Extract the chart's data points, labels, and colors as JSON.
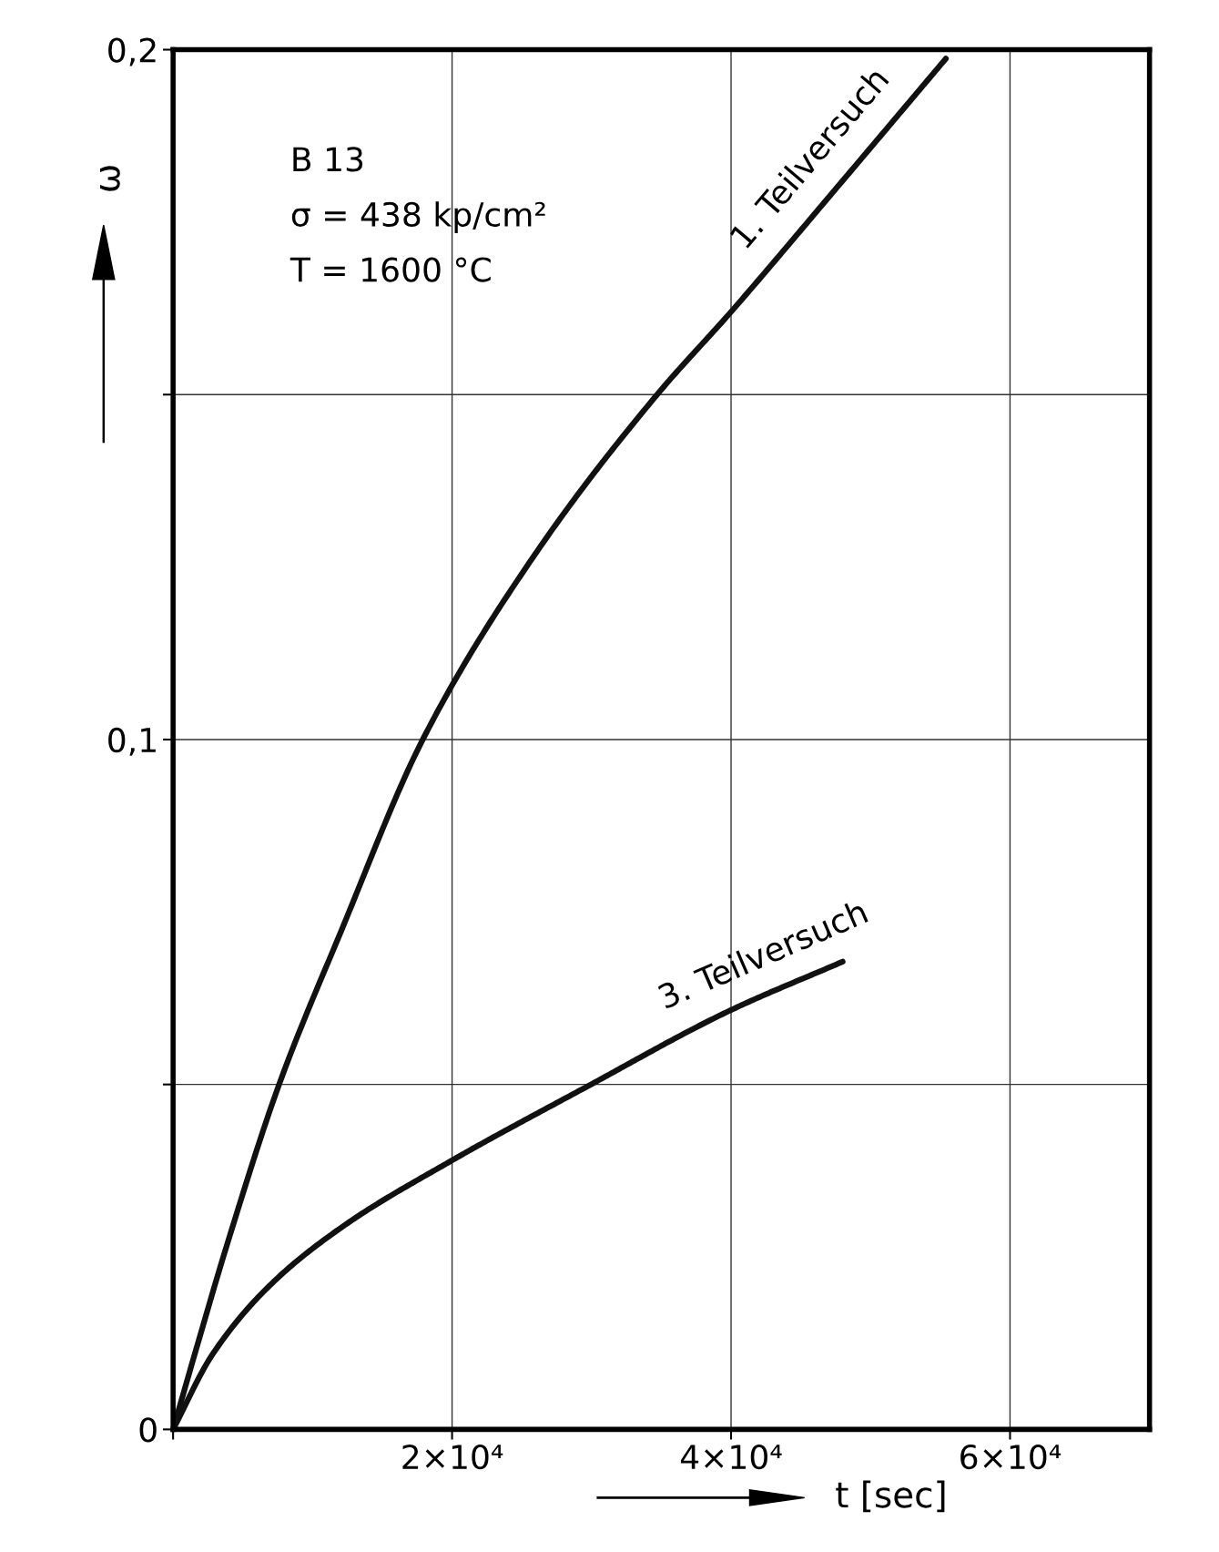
{
  "chart_data": {
    "type": "line",
    "xlabel": "t [sec]",
    "ylabel": "ω",
    "annotations": [
      "B 13",
      "σ = 438 kp/cm²",
      "T = 1600 °C"
    ],
    "xlim": [
      0,
      70000
    ],
    "ylim": [
      0,
      0.2
    ],
    "xticks": [
      {
        "value": 0,
        "label": null
      },
      {
        "value": 20000,
        "label": "2×10⁴"
      },
      {
        "value": 40000,
        "label": "4×10⁴"
      },
      {
        "value": 60000,
        "label": "6×10⁴"
      }
    ],
    "yticks": [
      0,
      {
        "value": 0.05,
        "label": null
      },
      {
        "value": 0.1,
        "label": "0,1"
      },
      {
        "value": 0.15,
        "label": null
      },
      {
        "value": 0.2,
        "label": "0,2"
      }
    ],
    "grid": true,
    "legend": false,
    "line_style": "solid",
    "marker": "none",
    "series": [
      {
        "name": "1. Teilversuch",
        "color": "#111111",
        "x": [
          0,
          1750,
          3900,
          7600,
          12000,
          17900,
          26000,
          34700,
          40000,
          48000,
          55400
        ],
        "values": [
          0,
          0.0123,
          0.027,
          0.05,
          0.072,
          0.1,
          0.127,
          0.15,
          0.162,
          0.181,
          0.1987
        ]
      },
      {
        "name": "3. Teilversuch",
        "color": "#111111",
        "x": [
          0,
          2800,
          7000,
          12300,
          20000,
          29500,
          39800,
          48000
        ],
        "values": [
          0,
          0.0108,
          0.021,
          0.0296,
          0.039,
          0.0495,
          0.0606,
          0.0678
        ]
      }
    ]
  }
}
